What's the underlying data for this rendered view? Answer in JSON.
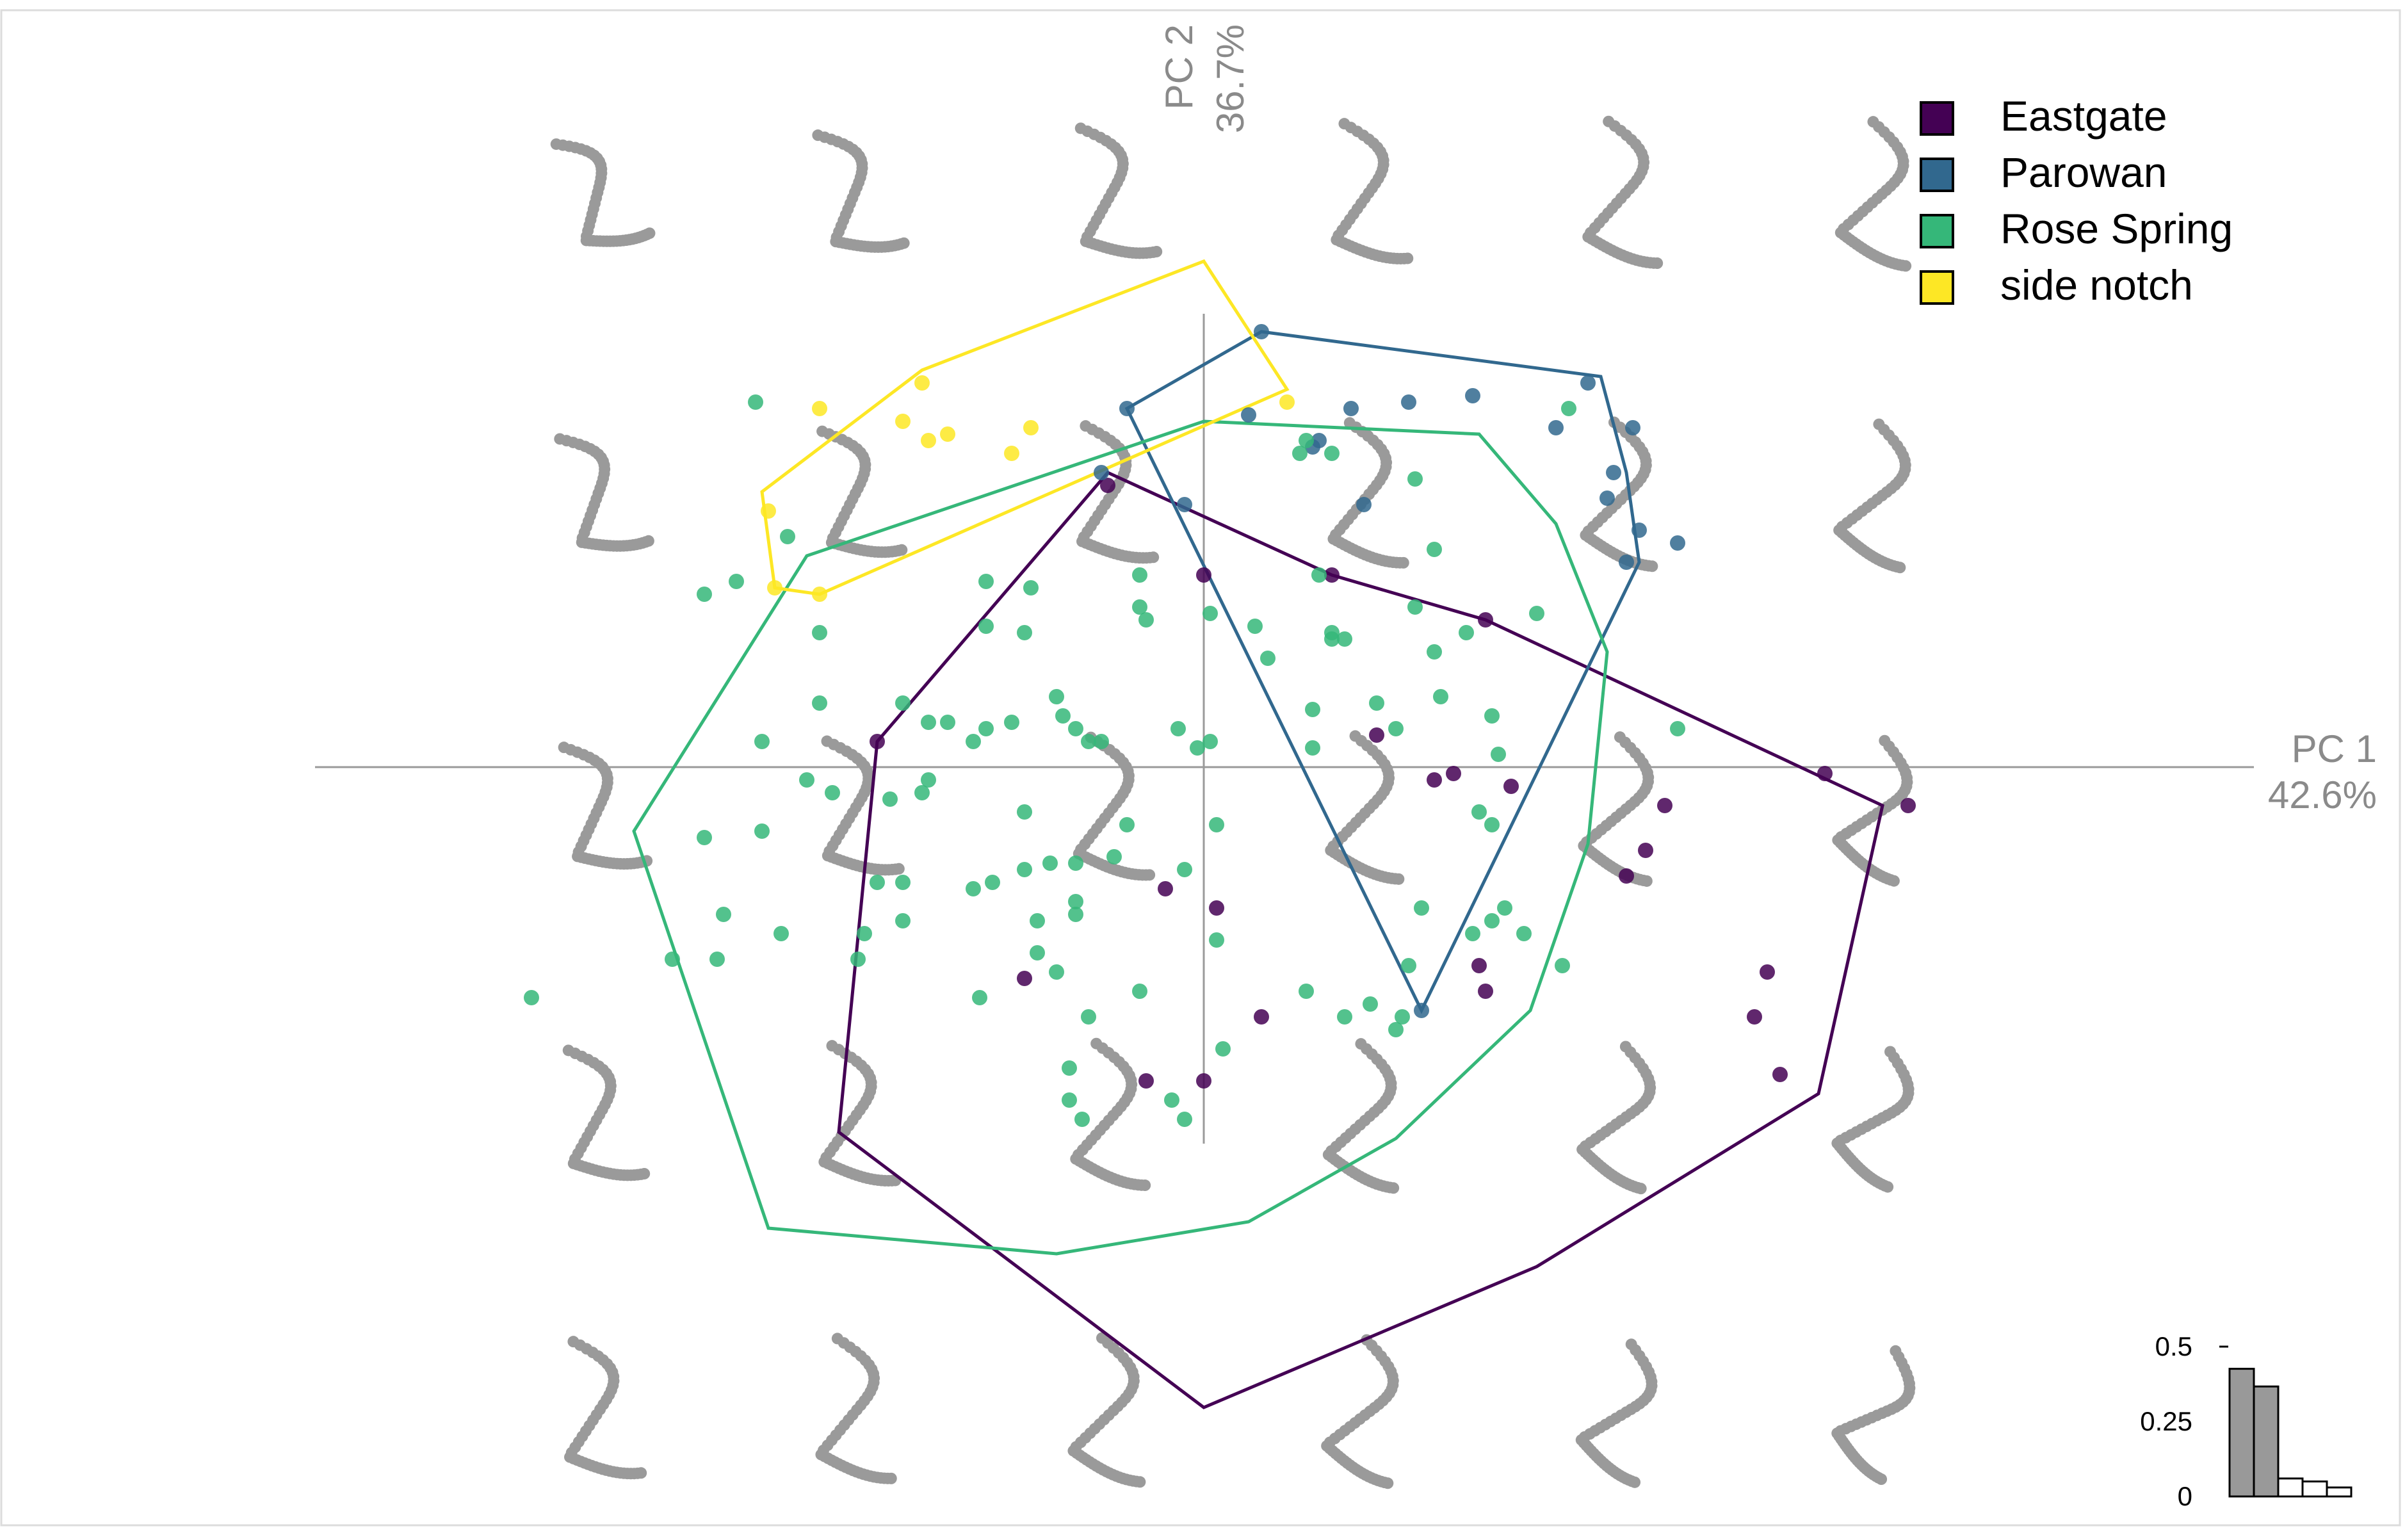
{
  "chart_data": {
    "type": "scatter",
    "title": "",
    "axes": {
      "pc1": {
        "label": "PC 1",
        "variance": "42.6%"
      },
      "pc2": {
        "label": "PC 2",
        "variance": "36.7%"
      }
    },
    "xlim": [
      -1.45,
      1.9
    ],
    "ylim": [
      -1.3,
      1.0
    ],
    "legend": {
      "position": "top-right"
    },
    "series": [
      {
        "name": "Eastgate",
        "color": "#440154",
        "points": [
          [
            -0.51,
            0.04
          ],
          [
            -0.15,
            0.44
          ],
          [
            0.2,
            0.3
          ],
          [
            0.44,
            0.23
          ],
          [
            0.27,
            0.05
          ],
          [
            0.36,
            -0.02
          ],
          [
            0.39,
            -0.01
          ],
          [
            0.48,
            -0.03
          ],
          [
            0.72,
            -0.06
          ],
          [
            0.69,
            -0.13
          ],
          [
            0.66,
            -0.17
          ],
          [
            -0.06,
            -0.19
          ],
          [
            0.02,
            -0.22
          ],
          [
            0.97,
            -0.01
          ],
          [
            1.1,
            -0.06
          ],
          [
            0.43,
            -0.31
          ],
          [
            0.44,
            -0.35
          ],
          [
            0.88,
            -0.32
          ],
          [
            0.86,
            -0.39
          ],
          [
            0.9,
            -0.48
          ],
          [
            -0.28,
            -0.33
          ],
          [
            0.09,
            -0.39
          ],
          [
            -0.09,
            -0.49
          ],
          [
            0.0,
            -0.49
          ],
          [
            0.0,
            0.3
          ]
        ],
        "hull": [
          [
            -0.15,
            0.46
          ],
          [
            0.2,
            0.3
          ],
          [
            0.44,
            0.23
          ],
          [
            1.06,
            -0.06
          ],
          [
            0.96,
            -0.51
          ],
          [
            0.52,
            -0.78
          ],
          [
            0.0,
            -1.0
          ],
          [
            -0.57,
            -0.57
          ],
          [
            -0.51,
            0.04
          ]
        ]
      },
      {
        "name": "Parowan",
        "color": "#31688e",
        "points": [
          [
            0.09,
            0.68
          ],
          [
            -0.12,
            0.56
          ],
          [
            0.07,
            0.55
          ],
          [
            0.23,
            0.56
          ],
          [
            0.32,
            0.57
          ],
          [
            0.42,
            0.58
          ],
          [
            0.55,
            0.53
          ],
          [
            0.67,
            0.53
          ],
          [
            0.63,
            0.42
          ],
          [
            0.68,
            0.37
          ],
          [
            0.74,
            0.35
          ],
          [
            0.25,
            0.41
          ],
          [
            -0.03,
            0.41
          ],
          [
            0.17,
            0.5
          ],
          [
            0.18,
            0.51
          ],
          [
            0.6,
            0.6
          ],
          [
            0.64,
            0.46
          ],
          [
            0.66,
            0.32
          ],
          [
            0.34,
            -0.38
          ],
          [
            -0.16,
            0.46
          ]
        ],
        "hull": [
          [
            0.09,
            0.68
          ],
          [
            0.62,
            0.61
          ],
          [
            0.66,
            0.46
          ],
          [
            0.68,
            0.32
          ],
          [
            0.34,
            -0.38
          ],
          [
            -0.12,
            0.56
          ]
        ]
      },
      {
        "name": "Rose Spring",
        "color": "#35b779",
        "points": [
          [
            -0.65,
            0.36
          ],
          [
            -0.6,
            0.21
          ],
          [
            -0.34,
            0.29
          ],
          [
            -0.27,
            0.28
          ],
          [
            -0.34,
            0.22
          ],
          [
            -0.28,
            0.21
          ],
          [
            -0.1,
            0.3
          ],
          [
            -0.1,
            0.25
          ],
          [
            -0.09,
            0.23
          ],
          [
            0.01,
            0.24
          ],
          [
            0.08,
            0.22
          ],
          [
            0.1,
            0.17
          ],
          [
            0.18,
            0.3
          ],
          [
            0.2,
            0.2
          ],
          [
            0.2,
            0.21
          ],
          [
            0.22,
            0.2
          ],
          [
            0.33,
            0.25
          ],
          [
            0.36,
            0.18
          ],
          [
            0.41,
            0.21
          ],
          [
            0.36,
            0.34
          ],
          [
            0.2,
            0.49
          ],
          [
            0.16,
            0.51
          ],
          [
            0.15,
            0.49
          ],
          [
            -0.7,
            0.57
          ],
          [
            -0.73,
            0.29
          ],
          [
            -0.6,
            0.1
          ],
          [
            -0.47,
            0.1
          ],
          [
            -0.43,
            0.07
          ],
          [
            -0.4,
            0.07
          ],
          [
            -0.36,
            0.04
          ],
          [
            -0.34,
            0.06
          ],
          [
            -0.23,
            0.11
          ],
          [
            -0.22,
            0.08
          ],
          [
            -0.2,
            0.06
          ],
          [
            -0.18,
            0.04
          ],
          [
            -0.16,
            0.04
          ],
          [
            -0.04,
            0.06
          ],
          [
            -0.01,
            0.03
          ],
          [
            0.01,
            0.04
          ],
          [
            0.17,
            0.09
          ],
          [
            0.17,
            0.03
          ],
          [
            0.27,
            0.1
          ],
          [
            0.3,
            0.06
          ],
          [
            0.37,
            0.11
          ],
          [
            0.45,
            0.08
          ],
          [
            0.46,
            0.02
          ],
          [
            0.43,
            -0.07
          ],
          [
            0.45,
            -0.09
          ],
          [
            -0.69,
            0.04
          ],
          [
            -0.62,
            -0.02
          ],
          [
            -0.58,
            -0.04
          ],
          [
            -0.49,
            -0.05
          ],
          [
            -0.69,
            -0.1
          ],
          [
            -0.78,
            -0.11
          ],
          [
            -0.51,
            -0.18
          ],
          [
            -0.47,
            -0.18
          ],
          [
            -0.36,
            -0.19
          ],
          [
            -0.33,
            -0.18
          ],
          [
            -0.28,
            -0.16
          ],
          [
            -0.24,
            -0.15
          ],
          [
            -0.2,
            -0.15
          ],
          [
            -0.14,
            -0.14
          ],
          [
            -0.03,
            -0.16
          ],
          [
            -0.26,
            -0.24
          ],
          [
            -0.2,
            -0.23
          ],
          [
            -0.2,
            -0.21
          ],
          [
            -0.26,
            -0.29
          ],
          [
            -0.23,
            -0.32
          ],
          [
            -0.18,
            -0.39
          ],
          [
            -0.1,
            -0.35
          ],
          [
            0.16,
            -0.35
          ],
          [
            0.26,
            -0.37
          ],
          [
            0.31,
            -0.39
          ],
          [
            0.22,
            -0.39
          ],
          [
            0.3,
            -0.41
          ],
          [
            0.03,
            -0.44
          ],
          [
            -0.21,
            -0.52
          ],
          [
            -0.21,
            -0.47
          ],
          [
            -0.03,
            -0.55
          ],
          [
            -0.47,
            -0.24
          ],
          [
            -0.53,
            -0.26
          ],
          [
            -0.66,
            -0.26
          ],
          [
            -0.83,
            -0.3
          ],
          [
            -0.54,
            -0.3
          ],
          [
            -1.05,
            -0.36
          ],
          [
            -0.75,
            -0.23
          ],
          [
            -0.76,
            -0.3
          ],
          [
            -0.35,
            -0.36
          ],
          [
            -0.05,
            -0.52
          ],
          [
            -0.19,
            -0.55
          ],
          [
            0.32,
            -0.31
          ],
          [
            0.47,
            -0.22
          ],
          [
            0.5,
            -0.26
          ],
          [
            0.42,
            -0.26
          ],
          [
            0.34,
            -0.22
          ],
          [
            0.45,
            -0.24
          ],
          [
            0.56,
            -0.31
          ],
          [
            0.02,
            -0.09
          ],
          [
            -0.12,
            -0.09
          ],
          [
            0.52,
            0.24
          ],
          [
            -0.78,
            0.27
          ],
          [
            0.33,
            0.45
          ],
          [
            -0.3,
            0.07
          ],
          [
            -0.43,
            -0.02
          ],
          [
            -0.28,
            -0.07
          ],
          [
            -0.44,
            -0.04
          ],
          [
            0.02,
            -0.27
          ],
          [
            0.57,
            0.56
          ],
          [
            0.74,
            0.06
          ]
        ],
        "hull": [
          [
            -0.62,
            0.33
          ],
          [
            0.0,
            0.54
          ],
          [
            0.43,
            0.52
          ],
          [
            0.55,
            0.38
          ],
          [
            0.63,
            0.18
          ],
          [
            0.6,
            -0.12
          ],
          [
            0.51,
            -0.38
          ],
          [
            0.3,
            -0.58
          ],
          [
            0.07,
            -0.71
          ],
          [
            -0.23,
            -0.76
          ],
          [
            -0.68,
            -0.72
          ],
          [
            -0.89,
            -0.1
          ]
        ]
      },
      {
        "name": "side notch",
        "color": "#fde725",
        "points": [
          [
            -0.44,
            0.6
          ],
          [
            -0.27,
            0.53
          ],
          [
            -0.4,
            0.52
          ],
          [
            -0.43,
            0.51
          ],
          [
            -0.3,
            0.49
          ],
          [
            -0.6,
            0.56
          ],
          [
            -0.47,
            0.54
          ],
          [
            -0.68,
            0.4
          ],
          [
            -0.67,
            0.28
          ],
          [
            -0.6,
            0.27
          ],
          [
            0.13,
            0.57
          ]
        ],
        "hull": [
          [
            -0.44,
            0.62
          ],
          [
            0.0,
            0.79
          ],
          [
            0.13,
            0.59
          ],
          [
            -0.6,
            0.27
          ],
          [
            -0.67,
            0.28
          ],
          [
            -0.69,
            0.43
          ]
        ]
      }
    ],
    "inset_bar": {
      "values": [
        0.426,
        0.367,
        0.06,
        0.05,
        0.03
      ],
      "highlighted": 2,
      "yticks": [
        "0",
        "0.25",
        "0.5"
      ]
    },
    "background_shapes": {
      "rows": 5,
      "cols": 6,
      "color": "#9a9a9a"
    }
  }
}
